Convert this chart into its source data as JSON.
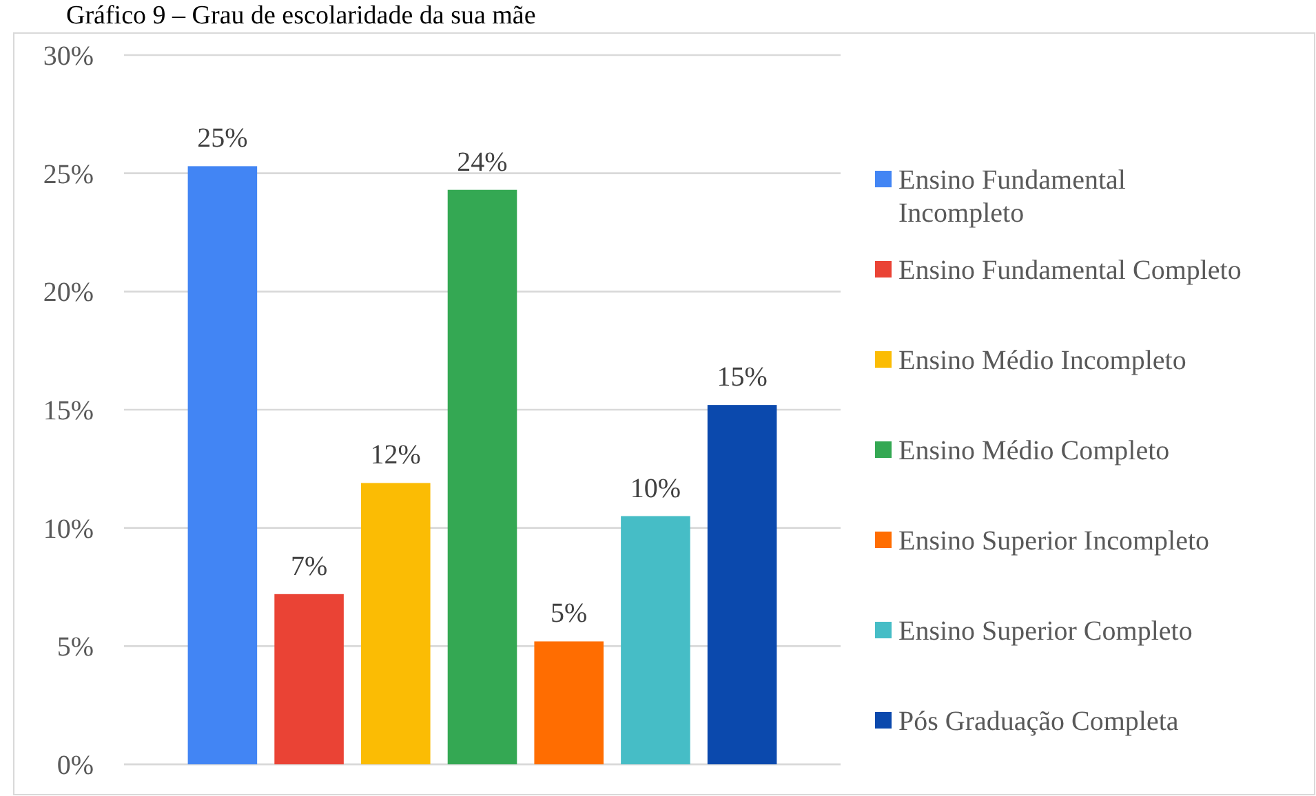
{
  "chart_data": {
    "type": "bar",
    "title": "Gráfico 9 – Grau de escolaridade da sua mãe",
    "categories": [
      null
    ],
    "series": [
      {
        "name": "Ensino Fundamental Incompleto",
        "color": "#4285f4",
        "values": [
          25.3
        ],
        "value_labels": [
          "25%"
        ]
      },
      {
        "name": "Ensino Fundamental Completo",
        "color": "#ea4335",
        "values": [
          7.2
        ],
        "value_labels": [
          "7%"
        ]
      },
      {
        "name": "Ensino Médio Incompleto",
        "color": "#fbbc04",
        "values": [
          11.9
        ],
        "value_labels": [
          "12%"
        ]
      },
      {
        "name": "Ensino Médio Completo",
        "color": "#34a853",
        "values": [
          24.3
        ],
        "value_labels": [
          "24%"
        ]
      },
      {
        "name": "Ensino Superior Incompleto",
        "color": "#ff6d01",
        "values": [
          5.2
        ],
        "value_labels": [
          "5%"
        ]
      },
      {
        "name": "Ensino Superior Completo",
        "color": "#46bdc6",
        "values": [
          10.5
        ],
        "value_labels": [
          "10%"
        ]
      },
      {
        "name": "Pós Graduação Completa",
        "color": "#0b49ad",
        "values": [
          15.2
        ],
        "value_labels": [
          "15%"
        ]
      }
    ],
    "ylim": [
      0,
      30
    ],
    "yticks": [
      {
        "value": 0,
        "label": "0%"
      },
      {
        "value": 5,
        "label": "5%"
      },
      {
        "value": 10,
        "label": "10%"
      },
      {
        "value": 15,
        "label": "15%"
      },
      {
        "value": 20,
        "label": "20%"
      },
      {
        "value": 25,
        "label": "25%"
      },
      {
        "value": 30,
        "label": "30%"
      }
    ],
    "grid": "y",
    "legend": "right"
  }
}
